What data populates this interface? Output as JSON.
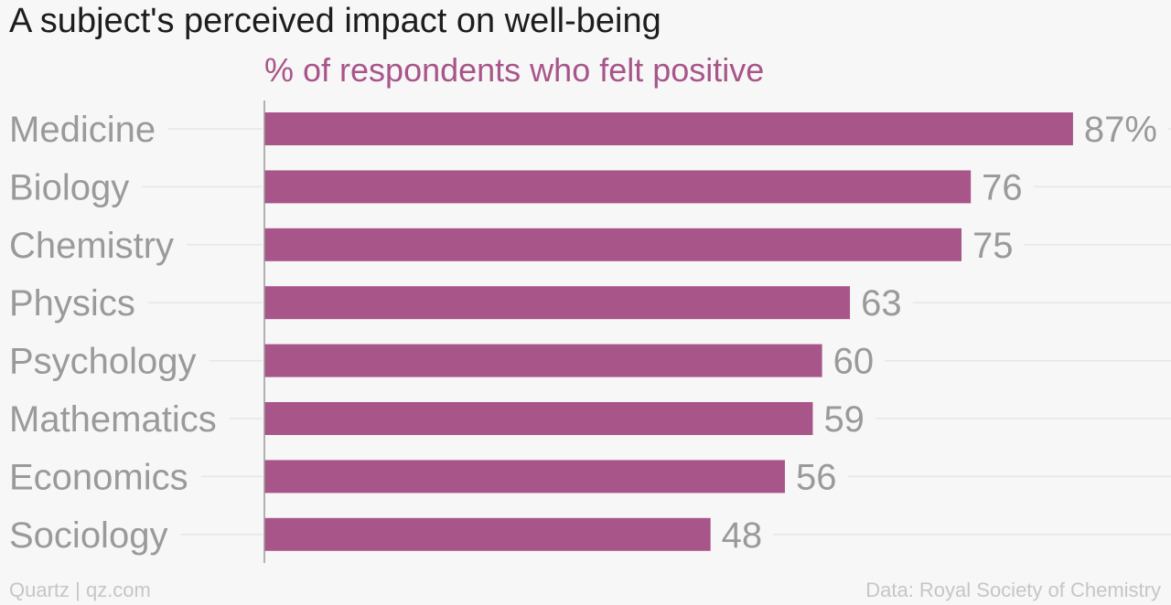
{
  "chart_data": {
    "type": "bar",
    "orientation": "horizontal",
    "title": "A subject's perceived impact on well-being",
    "subtitle": "% of respondents who felt positive",
    "categories": [
      "Medicine",
      "Biology",
      "Chemistry",
      "Physics",
      "Psychology",
      "Mathematics",
      "Economics",
      "Sociology"
    ],
    "values": [
      87,
      76,
      75,
      63,
      60,
      59,
      56,
      48
    ],
    "value_labels": [
      "87%",
      "76",
      "75",
      "63",
      "60",
      "59",
      "56",
      "48"
    ],
    "xlabel": "",
    "ylabel": "",
    "xlim": [
      0,
      100
    ],
    "grid": true,
    "colors": {
      "bar": "#a8558a",
      "category_label": "#9a9a9a",
      "value_label": "#9a9a9a",
      "gridline": "#e6e6e6",
      "axis": "#9a9a9a"
    }
  },
  "footer": {
    "source_left": "Quartz | qz.com",
    "source_right": "Data: Royal Society of Chemistry"
  }
}
